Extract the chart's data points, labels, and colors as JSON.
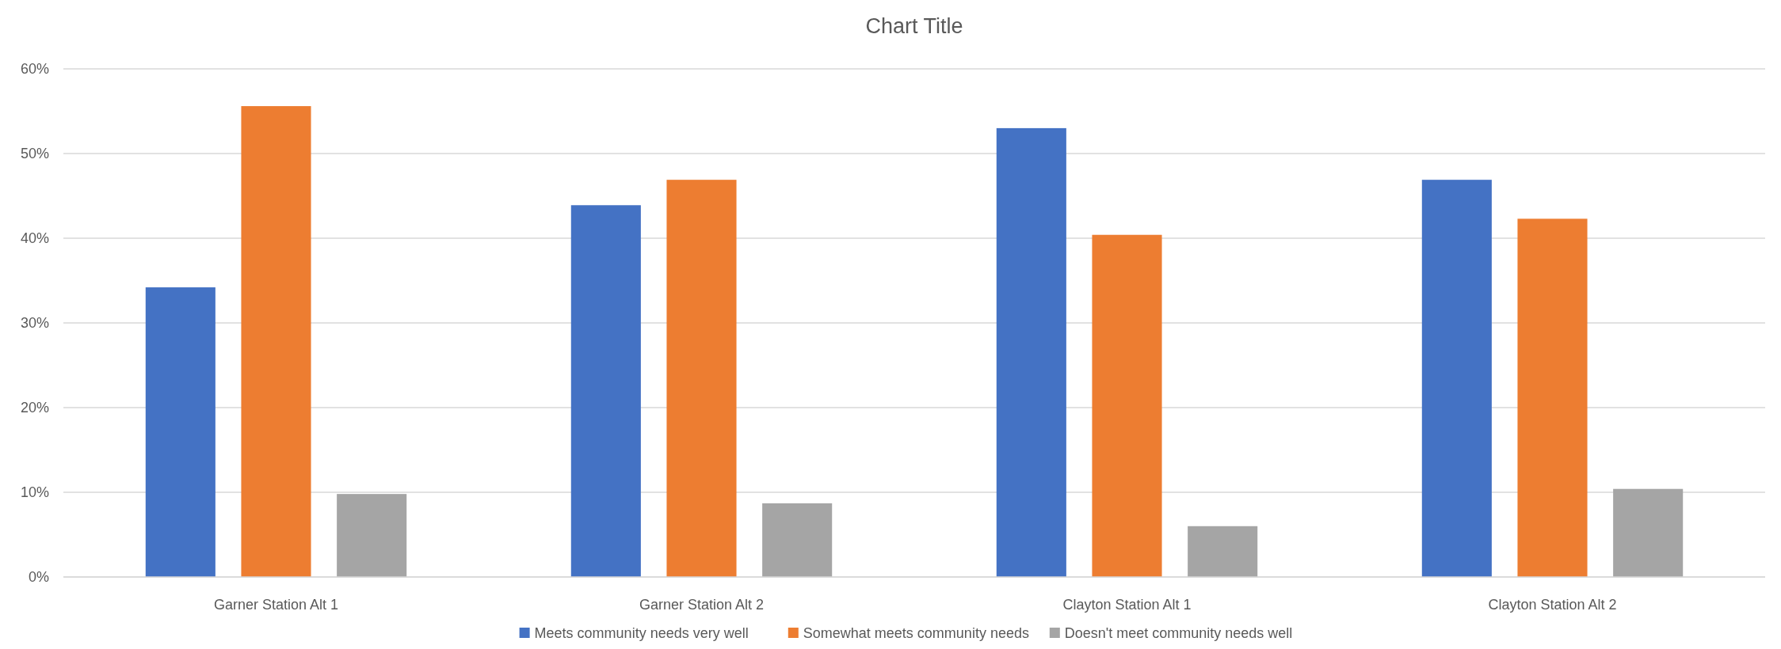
{
  "chart_data": {
    "type": "bar",
    "title": "Chart Title",
    "categories": [
      "Garner Station Alt 1",
      "Garner Station Alt 2",
      "Clayton Station Alt 1",
      "Clayton Station Alt 2"
    ],
    "series": [
      {
        "name": "Meets community needs very well",
        "color": "#4472c4",
        "values": [
          34.2,
          43.9,
          53.0,
          46.9
        ]
      },
      {
        "name": "Somewhat meets community needs",
        "color": "#ed7d31",
        "values": [
          55.6,
          46.9,
          40.4,
          42.3
        ]
      },
      {
        "name": "Doesn't meet community needs well",
        "color": "#a5a5a5",
        "values": [
          9.8,
          8.7,
          6.0,
          10.4
        ]
      }
    ],
    "ylim": [
      0,
      60
    ],
    "yticks": [
      {
        "value": 0,
        "label": "0%"
      },
      {
        "value": 10,
        "label": "10%"
      },
      {
        "value": 20,
        "label": "20%"
      },
      {
        "value": 30,
        "label": "30%"
      },
      {
        "value": 40,
        "label": "40%"
      },
      {
        "value": 50,
        "label": "50%"
      },
      {
        "value": 60,
        "label": "60%"
      }
    ],
    "grid": "y",
    "legend": "bottom"
  }
}
